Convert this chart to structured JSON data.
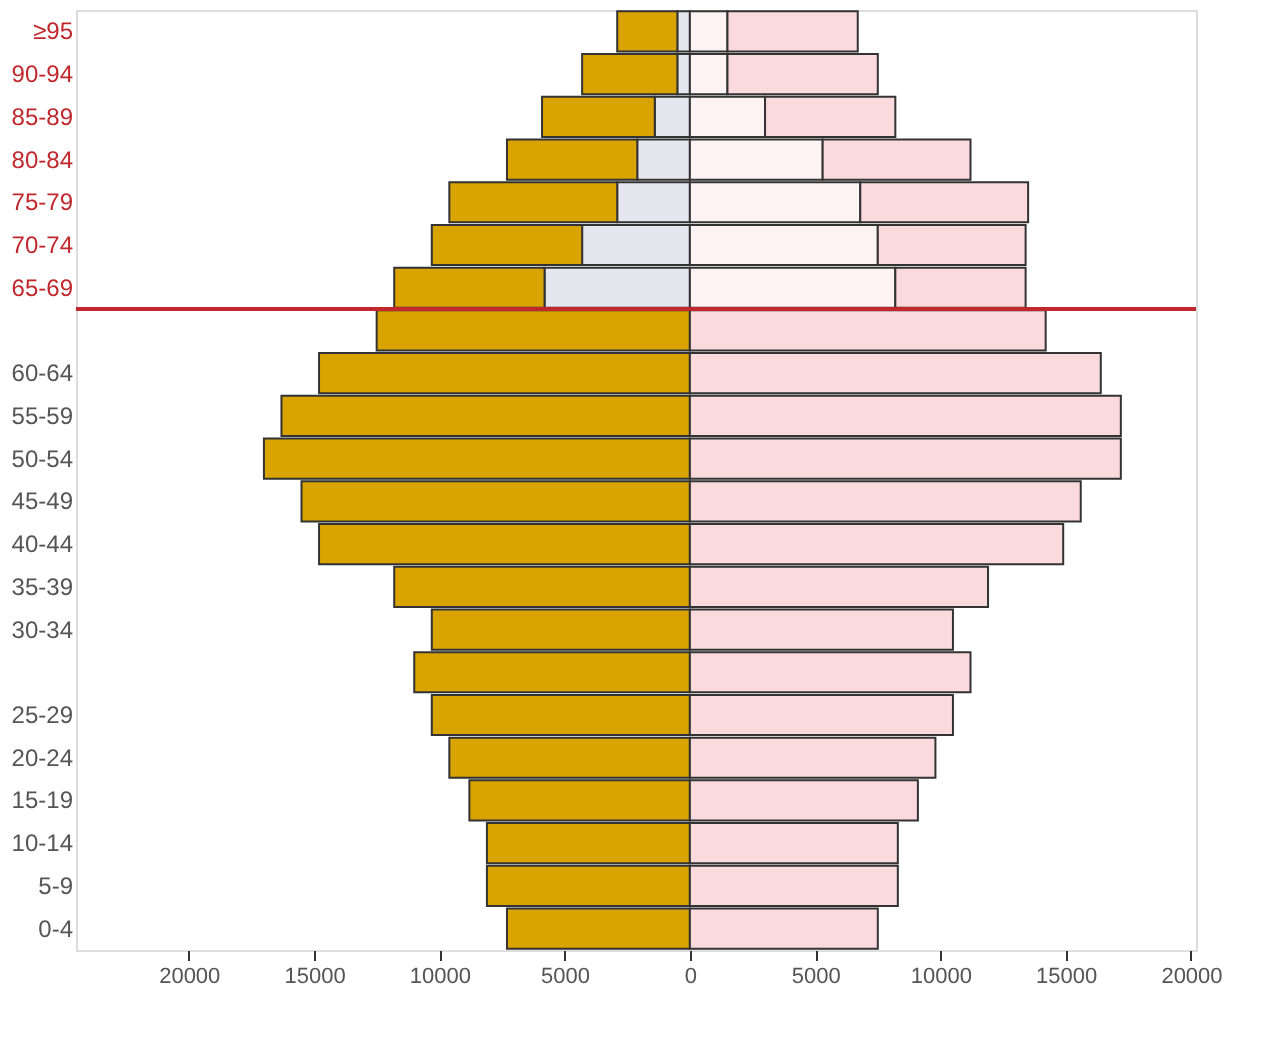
{
  "chart_data": {
    "type": "bar",
    "orientation": "horizontal",
    "stacked": true,
    "categories": [
      "≥95",
      "90-94",
      "85-89",
      "80-84",
      "75-79",
      "70-74",
      "65-69",
      null,
      "60-64",
      "55-59",
      "50-54",
      "45-49",
      "40-44",
      "35-39",
      "30-34",
      null,
      "25-29",
      "20-24",
      "15-19",
      "10-14",
      "5-9",
      "0-4"
    ],
    "series": [
      {
        "color": "#e6e6ee",
        "values": [
          -500,
          -500,
          -1400,
          -2100,
          -2900,
          -4300,
          -5800,
          null,
          null,
          null,
          null,
          null,
          null,
          null,
          null,
          null,
          null,
          null,
          null,
          null,
          null,
          null
        ]
      },
      {
        "color": "#d9a300",
        "values": [
          -2400,
          -3800,
          -4500,
          -5200,
          -6700,
          -6000,
          -6000,
          -12500,
          -14800,
          -16300,
          -17000,
          -15500,
          -14800,
          -11800,
          -10300,
          -11000,
          -10300,
          -9600,
          -8800,
          -8100,
          -8100,
          -7300
        ]
      },
      {
        "color": "#fdf3f3",
        "values": [
          1500,
          1500,
          3000,
          5300,
          6800,
          7500,
          8200,
          null,
          null,
          null,
          null,
          null,
          null,
          null,
          null,
          null,
          null,
          null,
          null,
          null,
          null,
          null
        ]
      },
      {
        "color": "#fadadd",
        "values": [
          5200,
          6000,
          5200,
          5900,
          6700,
          5900,
          5200,
          14200,
          16400,
          17200,
          17200,
          15600,
          14900,
          11900,
          10500,
          11200,
          10500,
          9800,
          9100,
          8300,
          8300,
          7500
        ]
      }
    ],
    "xlim": [
      -24500,
      20200
    ],
    "xticks": [
      {
        "value": -20000,
        "label": "20000"
      },
      {
        "value": -15000,
        "label": "15000"
      },
      {
        "value": -10000,
        "label": "10000"
      },
      {
        "value": -5000,
        "label": "5000"
      },
      0,
      5000,
      10000,
      15000,
      20000
    ],
    "ref_lines": [
      {
        "axis": "y",
        "value": "65-69",
        "color": "#c0282d"
      }
    ],
    "grid": false
  }
}
